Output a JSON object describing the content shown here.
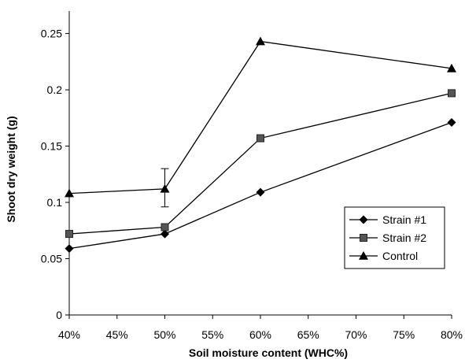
{
  "chart_data": {
    "type": "line",
    "title": "",
    "xlabel": "Soil moisture content (WHC%)",
    "ylabel": "Shoot dry weight (g)",
    "x_tick_labels": [
      "40%",
      "45%",
      "50%",
      "55%",
      "60%",
      "65%",
      "70%",
      "75%",
      "80%"
    ],
    "x_tick_values": [
      40,
      45,
      50,
      55,
      60,
      65,
      70,
      75,
      80
    ],
    "y_tick_labels": [
      "0",
      "0.05",
      "0.1",
      "0.15",
      "0.2",
      "0.25"
    ],
    "y_tick_values": [
      0,
      0.05,
      0.1,
      0.15,
      0.2,
      0.25
    ],
    "xlim": [
      40,
      80
    ],
    "ylim": [
      0,
      0.27
    ],
    "grid": false,
    "legend_position": "right",
    "series": [
      {
        "name": "Strain #1",
        "marker": "diamond",
        "color": "#000000",
        "x": [
          40,
          50,
          60,
          80
        ],
        "y": [
          0.059,
          0.072,
          0.109,
          0.171
        ]
      },
      {
        "name": "Strain #2",
        "marker": "square",
        "color": "#000000",
        "x": [
          40,
          50,
          60,
          80
        ],
        "y": [
          0.072,
          0.078,
          0.157,
          0.197
        ]
      },
      {
        "name": "Control",
        "marker": "triangle",
        "color": "#000000",
        "x": [
          40,
          50,
          60,
          80
        ],
        "y": [
          0.108,
          0.112,
          0.243,
          0.219
        ]
      }
    ],
    "error_bars": [
      {
        "series": "Control",
        "x": 50,
        "low": 0.096,
        "high": 0.13
      }
    ]
  }
}
